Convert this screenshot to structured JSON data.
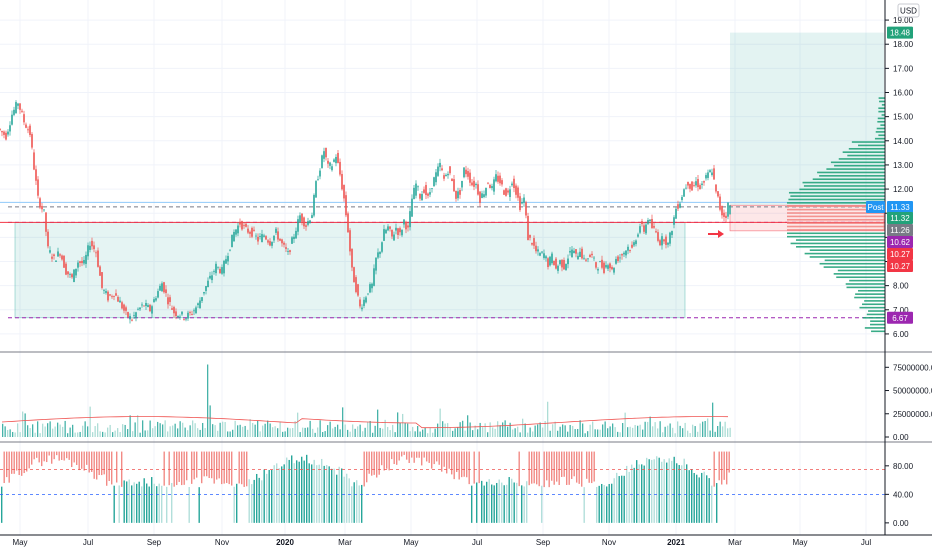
{
  "currency": "USD",
  "chart_data": [
    {
      "type": "candlestick",
      "pane": "price",
      "ylim": [
        5.5,
        19.5
      ],
      "yticks": [
        "6.00",
        "7.00",
        "8.00",
        "9.00",
        "10.00",
        "11.00",
        "12.00",
        "13.00",
        "14.00",
        "15.00",
        "16.00",
        "17.00",
        "18.00",
        "19.00"
      ],
      "x_labels": [
        "May",
        "Jul",
        "Sep",
        "Nov",
        "2020",
        "Mar",
        "May",
        "Jul",
        "Sep",
        "Nov",
        "2021",
        "Mar",
        "May",
        "Jul"
      ],
      "x_label_bold": [
        "2020",
        "2021"
      ],
      "price_path": [
        [
          0,
          14.5
        ],
        [
          8,
          14.2
        ],
        [
          14,
          15.1
        ],
        [
          20,
          15.6
        ],
        [
          26,
          14.8
        ],
        [
          32,
          14.3
        ],
        [
          36,
          12.9
        ],
        [
          40,
          11.6
        ],
        [
          46,
          11.0
        ],
        [
          50,
          9.5
        ],
        [
          56,
          9.1
        ],
        [
          62,
          9.4
        ],
        [
          68,
          8.6
        ],
        [
          74,
          8.3
        ],
        [
          80,
          9.0
        ],
        [
          86,
          8.9
        ],
        [
          92,
          9.8
        ],
        [
          98,
          9.4
        ],
        [
          104,
          7.9
        ],
        [
          110,
          7.5
        ],
        [
          116,
          7.7
        ],
        [
          122,
          7.3
        ],
        [
          128,
          6.8
        ],
        [
          134,
          6.6
        ],
        [
          140,
          7.0
        ],
        [
          146,
          7.2
        ],
        [
          152,
          7.0
        ],
        [
          158,
          7.6
        ],
        [
          164,
          8.1
        ],
        [
          170,
          7.4
        ],
        [
          176,
          6.9
        ],
        [
          182,
          6.8
        ],
        [
          188,
          6.7
        ],
        [
          194,
          6.9
        ],
        [
          200,
          7.2
        ],
        [
          206,
          7.8
        ],
        [
          212,
          8.3
        ],
        [
          218,
          8.8
        ],
        [
          224,
          8.6
        ],
        [
          230,
          9.4
        ],
        [
          236,
          10.2
        ],
        [
          242,
          10.6
        ],
        [
          248,
          10.3
        ],
        [
          254,
          10.2
        ],
        [
          260,
          9.9
        ],
        [
          266,
          10.1
        ],
        [
          272,
          9.8
        ],
        [
          278,
          10.2
        ],
        [
          284,
          9.7
        ],
        [
          290,
          9.3
        ],
        [
          296,
          10.1
        ],
        [
          302,
          10.9
        ],
        [
          308,
          10.5
        ],
        [
          314,
          11.0
        ],
        [
          318,
          12.2
        ],
        [
          322,
          12.9
        ],
        [
          326,
          13.6
        ],
        [
          330,
          12.9
        ],
        [
          334,
          13.0
        ],
        [
          338,
          13.4
        ],
        [
          342,
          12.6
        ],
        [
          346,
          11.6
        ],
        [
          350,
          10.3
        ],
        [
          354,
          8.6
        ],
        [
          358,
          7.9
        ],
        [
          362,
          7.1
        ],
        [
          366,
          7.4
        ],
        [
          370,
          7.8
        ],
        [
          374,
          8.0
        ],
        [
          378,
          9.1
        ],
        [
          382,
          9.5
        ],
        [
          386,
          10.2
        ],
        [
          390,
          10.4
        ],
        [
          394,
          10.0
        ],
        [
          398,
          10.4
        ],
        [
          402,
          10.1
        ],
        [
          406,
          10.7
        ],
        [
          410,
          10.3
        ],
        [
          414,
          11.6
        ],
        [
          418,
          12.2
        ],
        [
          422,
          11.7
        ],
        [
          426,
          12.0
        ],
        [
          430,
          11.6
        ],
        [
          434,
          12.2
        ],
        [
          438,
          12.6
        ],
        [
          442,
          13.0
        ],
        [
          446,
          12.4
        ],
        [
          450,
          12.8
        ],
        [
          454,
          12.3
        ],
        [
          458,
          11.7
        ],
        [
          462,
          11.9
        ],
        [
          466,
          12.8
        ],
        [
          470,
          12.6
        ],
        [
          474,
          12.2
        ],
        [
          478,
          12.2
        ],
        [
          482,
          11.6
        ],
        [
          486,
          11.9
        ],
        [
          490,
          12.3
        ],
        [
          494,
          12.0
        ],
        [
          498,
          12.5
        ],
        [
          502,
          12.3
        ],
        [
          506,
          11.9
        ],
        [
          510,
          11.8
        ],
        [
          514,
          12.4
        ],
        [
          518,
          11.9
        ],
        [
          522,
          11.3
        ],
        [
          526,
          11.6
        ],
        [
          530,
          10.0
        ],
        [
          534,
          9.8
        ],
        [
          538,
          9.4
        ],
        [
          542,
          9.3
        ],
        [
          546,
          9.3
        ],
        [
          550,
          8.9
        ],
        [
          554,
          9.2
        ],
        [
          558,
          8.7
        ],
        [
          562,
          9.0
        ],
        [
          566,
          8.8
        ],
        [
          570,
          9.2
        ],
        [
          574,
          9.5
        ],
        [
          578,
          9.2
        ],
        [
          582,
          9.5
        ],
        [
          586,
          9.0
        ],
        [
          590,
          9.2
        ],
        [
          594,
          9.2
        ],
        [
          598,
          8.8
        ],
        [
          602,
          8.9
        ],
        [
          606,
          8.7
        ],
        [
          610,
          9.0
        ],
        [
          614,
          8.6
        ],
        [
          618,
          9.1
        ],
        [
          622,
          9.2
        ],
        [
          626,
          9.4
        ],
        [
          630,
          9.6
        ],
        [
          634,
          9.5
        ],
        [
          638,
          10.0
        ],
        [
          642,
          10.5
        ],
        [
          646,
          10.3
        ],
        [
          650,
          10.8
        ],
        [
          654,
          10.4
        ],
        [
          658,
          10.2
        ],
        [
          662,
          9.8
        ],
        [
          666,
          10.0
        ],
        [
          670,
          9.7
        ],
        [
          674,
          10.4
        ],
        [
          678,
          11.2
        ],
        [
          682,
          11.5
        ],
        [
          686,
          12.0
        ],
        [
          690,
          12.3
        ],
        [
          694,
          12.0
        ],
        [
          698,
          12.3
        ],
        [
          702,
          12.1
        ],
        [
          706,
          12.3
        ],
        [
          710,
          12.6
        ],
        [
          714,
          12.8
        ],
        [
          716,
          12.3
        ],
        [
          718,
          11.8
        ],
        [
          720,
          11.6
        ],
        [
          722,
          11.2
        ],
        [
          724,
          11.0
        ],
        [
          726,
          10.9
        ],
        [
          728,
          10.95
        ],
        [
          730,
          11.33
        ]
      ],
      "open_position": {
        "entry": 10.62,
        "target": 18.48,
        "stop": 10.27
      },
      "long_position_box": {
        "bottom": 6.67,
        "top": 10.62
      },
      "horizontal_levels": [
        {
          "label": "11.26",
          "value": 11.26,
          "color": "#787b86"
        },
        {
          "label": "6.67",
          "value": 6.67,
          "color": "#9c27b0"
        },
        {
          "label": "10.62",
          "value": 10.62,
          "color": "#9c27b0"
        }
      ],
      "price_badges": [
        {
          "text": "18.48",
          "value": 18.48,
          "color": "#22a27a"
        },
        {
          "text": "11.33",
          "value": 11.33,
          "color": "#2196f3"
        },
        {
          "text": "11.32",
          "value": 11.32,
          "color": "#22a27a"
        },
        {
          "text": "11.26",
          "value": 11.26,
          "color": "#787b86"
        },
        {
          "text": "10.62",
          "value": 10.62,
          "color": "#9c27b0"
        },
        {
          "text": "10.27",
          "value": 10.27,
          "color": "#f23645"
        },
        {
          "text": "10.27",
          "value": 10.27,
          "color": "#f23645"
        },
        {
          "text": "6.67",
          "value": 6.67,
          "color": "#9c27b0"
        }
      ],
      "post_label": "Post",
      "volume_profile_color": "#22a27a"
    },
    {
      "type": "bar",
      "pane": "volume",
      "ylim": [
        0,
        85000000
      ],
      "yticks": [
        "0.00",
        "25000000.00",
        "50000000.00",
        "75000000.00"
      ],
      "ytick_values": [
        0,
        25000000,
        50000000,
        75000000
      ],
      "notable_values": [
        {
          "x": 207,
          "value": 78000000
        },
        {
          "x": 713,
          "value": 37000000
        }
      ],
      "moving_average_color": "#ef5350"
    },
    {
      "type": "bar",
      "pane": "oscillator",
      "ylim": [
        -10,
        105
      ],
      "yticks": [
        "0.00",
        "40.00",
        "80.00"
      ],
      "ytick_values": [
        0,
        40,
        80
      ],
      "levels": [
        {
          "value": 75,
          "color": "#ef5350"
        },
        {
          "value": 40,
          "color": "#2962ff"
        }
      ],
      "colors": {
        "high": "#f28a85",
        "low": "#26a69a",
        "low_light": "#b2dfdb"
      }
    }
  ]
}
